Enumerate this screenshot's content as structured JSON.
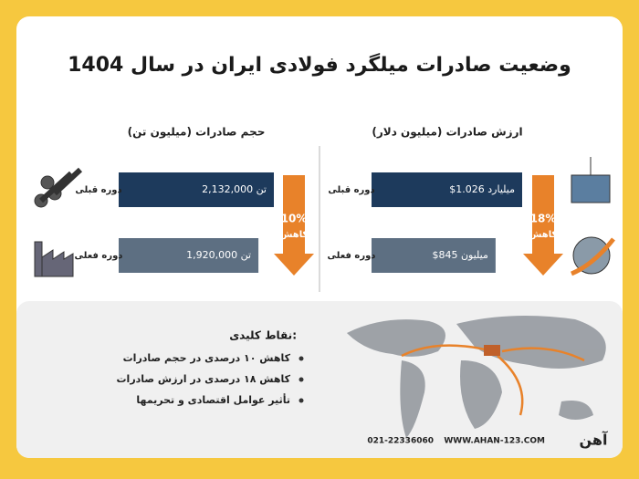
{
  "title": "وضعیت صادرات میلگرد فولادی ایران در سال 1404",
  "chart_data": [
    {
      "type": "bar",
      "orientation": "horizontal",
      "title": "ارزش صادرات (میلیون دلار)",
      "categories": [
        "دوره قبلی",
        "دوره فعلی"
      ],
      "values": [
        1026,
        845
      ],
      "value_labels": [
        "$1.026 میلیارد",
        "$845 میلیون"
      ],
      "colors": [
        "#1d3a5c",
        "#5d6f82"
      ],
      "change_label": "18%",
      "change_note": "کاهش"
    },
    {
      "type": "bar",
      "orientation": "horizontal",
      "title": "حجم صادرات (میلیون تن)",
      "categories": [
        "دوره قبلی",
        "دوره فعلی"
      ],
      "values": [
        2132000,
        1920000
      ],
      "value_labels": [
        "2,132,000 تن",
        "1,920,000 تن"
      ],
      "colors": [
        "#1d3a5c",
        "#5d6f82"
      ],
      "change_label": "10%",
      "change_note": "کاهش"
    }
  ],
  "key_points": {
    "title": "نقاط کلیدی:",
    "items": [
      "کاهش ۱۰ درصدی در حجم صادرات",
      "کاهش ۱۸ درصدی در ارزش صادرات",
      "تأثیر عوامل اقتصادی و تحریمها"
    ]
  },
  "footer": {
    "phone": "021-22336060",
    "website": "WWW.AHAN-123.COM",
    "brand": "آهن"
  }
}
